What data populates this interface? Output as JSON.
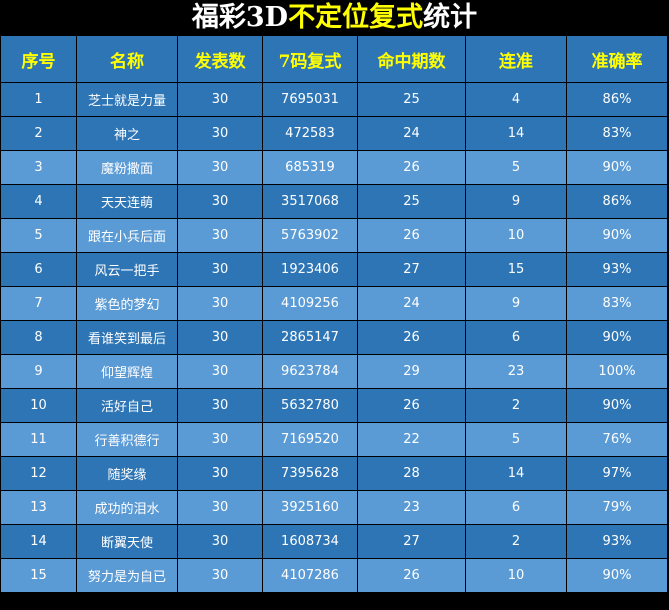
{
  "title": {
    "part1": "福彩3D",
    "part2": "不定位复式",
    "part3": "统计"
  },
  "colors": {
    "header_bg": "#2e75b6",
    "dark_row": "#2e75b6",
    "light_row": "#5b9bd5",
    "header_text": "#ffff00"
  },
  "columns": [
    "序号",
    "名称",
    "发表数",
    "7码复式",
    "命中期数",
    "连准",
    "准确率"
  ],
  "rows": [
    [
      "1",
      "芝士就是力量",
      "30",
      "7695031",
      "25",
      "4",
      "86%"
    ],
    [
      "2",
      "神之",
      "30",
      "472583",
      "24",
      "14",
      "83%"
    ],
    [
      "3",
      "魔粉撒面",
      "30",
      "685319",
      "26",
      "5",
      "90%"
    ],
    [
      "4",
      "天天连萌",
      "30",
      "3517068",
      "25",
      "9",
      "86%"
    ],
    [
      "5",
      "跟在小兵后面",
      "30",
      "5763902",
      "26",
      "10",
      "90%"
    ],
    [
      "6",
      "风云一把手",
      "30",
      "1923406",
      "27",
      "15",
      "93%"
    ],
    [
      "7",
      "紫色的梦幻",
      "30",
      "4109256",
      "24",
      "9",
      "83%"
    ],
    [
      "8",
      "看谁笑到最后",
      "30",
      "2865147",
      "26",
      "6",
      "90%"
    ],
    [
      "9",
      "仰望辉煌",
      "30",
      "9623784",
      "29",
      "23",
      "100%"
    ],
    [
      "10",
      "活好自己",
      "30",
      "5632780",
      "26",
      "2",
      "90%"
    ],
    [
      "11",
      "行善积德行",
      "30",
      "7169520",
      "22",
      "5",
      "76%"
    ],
    [
      "12",
      "随奖缘",
      "30",
      "7395628",
      "28",
      "14",
      "97%"
    ],
    [
      "13",
      "成功的泪水",
      "30",
      "3925160",
      "23",
      "6",
      "79%"
    ],
    [
      "14",
      "断翼天使",
      "30",
      "1608734",
      "27",
      "2",
      "93%"
    ],
    [
      "15",
      "努力是为自已",
      "30",
      "4107286",
      "26",
      "10",
      "90%"
    ]
  ]
}
